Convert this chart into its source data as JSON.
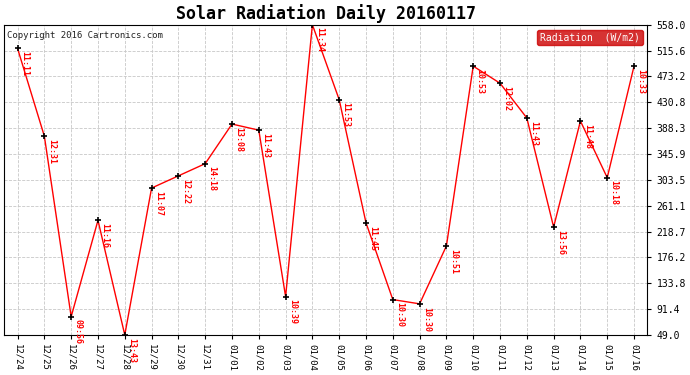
{
  "title": "Solar Radiation Daily 20160117",
  "copyright_text": "Copyright 2016 Cartronics.com",
  "legend_label": "Radiation  (W/m2)",
  "x_labels": [
    "12/24",
    "12/25",
    "12/26",
    "12/27",
    "12/28",
    "12/29",
    "12/30",
    "12/31",
    "01/01",
    "01/02",
    "01/03",
    "01/04",
    "01/05",
    "01/06",
    "01/07",
    "01/08",
    "01/09",
    "01/10",
    "01/11",
    "01/12",
    "01/13",
    "01/14",
    "01/15",
    "01/16"
  ],
  "y_values": [
    519,
    375,
    79,
    237,
    49,
    290,
    310,
    330,
    395,
    385,
    112,
    558,
    435,
    233,
    107,
    100,
    195,
    490,
    462,
    405,
    226,
    400,
    307,
    490
  ],
  "point_labels": [
    "11:11",
    "12:31",
    "09:56",
    "11:16",
    "13:43",
    "11:07",
    "12:22",
    "14:18",
    "13:08",
    "11:43",
    "10:39",
    "11:34",
    "11:53",
    "11:45",
    "10:30",
    "10:30",
    "10:51",
    "10:53",
    "12:02",
    "11:43",
    "13:56",
    "11:48",
    "10:18",
    "10:33"
  ],
  "y_ticks": [
    49.0,
    91.4,
    133.8,
    176.2,
    218.7,
    261.1,
    303.5,
    345.9,
    388.3,
    430.8,
    473.2,
    515.6,
    558.0
  ],
  "y_min": 49.0,
  "y_max": 558.0,
  "line_color": "#FF0000",
  "marker_color": "#000000",
  "label_color": "#FF0000",
  "bg_color": "#FFFFFF",
  "plot_bg_color": "#FFFFFF",
  "grid_color": "#C8C8C8",
  "title_fontsize": 12,
  "legend_bg": "#CC0000",
  "legend_fg": "#FFFFFF"
}
